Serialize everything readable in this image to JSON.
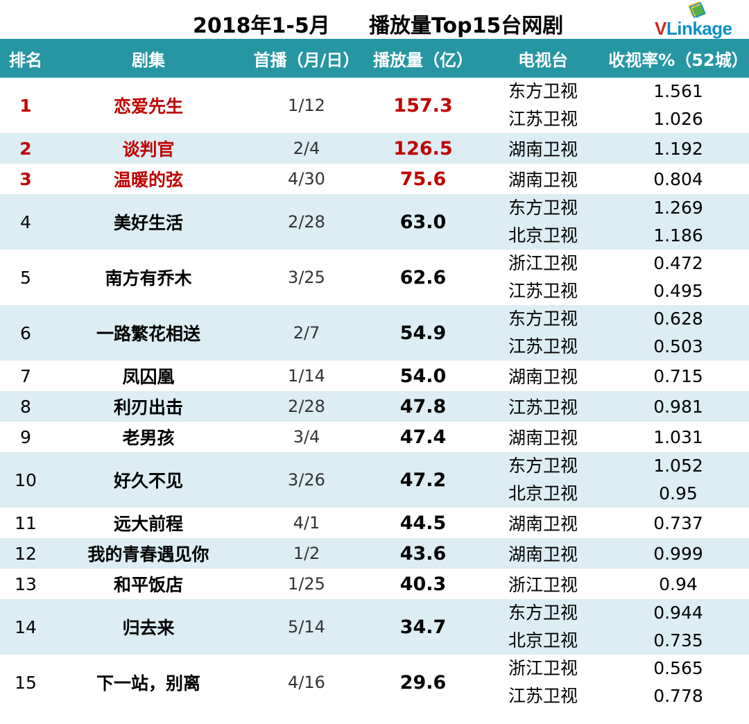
{
  "title": {
    "left": "2018年1-5月",
    "right": "播放量Top15台网剧"
  },
  "logo": {
    "v": "V",
    "rest": "Linkage"
  },
  "headers": [
    "排名",
    "剧集",
    "首播（月/日）",
    "播放量（亿）",
    "电视台",
    "收视率%（52城）"
  ],
  "rows": [
    {
      "rank": "1",
      "name": "恋爱先生",
      "date": "1/12",
      "plays": "157.3",
      "tv": [
        "东方卫视",
        "江苏卫视"
      ],
      "rating": [
        "1.561",
        "1.026"
      ]
    },
    {
      "rank": "2",
      "name": "谈判官",
      "date": "2/4",
      "plays": "126.5",
      "tv": [
        "湖南卫视"
      ],
      "rating": [
        "1.192"
      ]
    },
    {
      "rank": "3",
      "name": "温暖的弦",
      "date": "4/30",
      "plays": "75.6",
      "tv": [
        "湖南卫视"
      ],
      "rating": [
        "0.804"
      ]
    },
    {
      "rank": "4",
      "name": "美好生活",
      "date": "2/28",
      "plays": "63.0",
      "tv": [
        "东方卫视",
        "北京卫视"
      ],
      "rating": [
        "1.269",
        "1.186"
      ]
    },
    {
      "rank": "5",
      "name": "南方有乔木",
      "date": "3/25",
      "plays": "62.6",
      "tv": [
        "浙江卫视",
        "江苏卫视"
      ],
      "rating": [
        "0.472",
        "0.495"
      ]
    },
    {
      "rank": "6",
      "name": "一路繁花相送",
      "date": "2/7",
      "plays": "54.9",
      "tv": [
        "东方卫视",
        "江苏卫视"
      ],
      "rating": [
        "0.628",
        "0.503"
      ]
    },
    {
      "rank": "7",
      "name": "凤囚凰",
      "date": "1/14",
      "plays": "54.0",
      "tv": [
        "湖南卫视"
      ],
      "rating": [
        "0.715"
      ]
    },
    {
      "rank": "8",
      "name": "利刃出击",
      "date": "2/28",
      "plays": "47.8",
      "tv": [
        "江苏卫视"
      ],
      "rating": [
        "0.981"
      ]
    },
    {
      "rank": "9",
      "name": "老男孩",
      "date": "3/4",
      "plays": "47.4",
      "tv": [
        "湖南卫视"
      ],
      "rating": [
        "1.031"
      ]
    },
    {
      "rank": "10",
      "name": "好久不见",
      "date": "3/26",
      "plays": "47.2",
      "tv": [
        "东方卫视",
        "北京卫视"
      ],
      "rating": [
        "1.052",
        "0.95"
      ]
    },
    {
      "rank": "11",
      "name": "远大前程",
      "date": "4/1",
      "plays": "44.5",
      "tv": [
        "湖南卫视"
      ],
      "rating": [
        "0.737"
      ]
    },
    {
      "rank": "12",
      "name": "我的青春遇见你",
      "date": "1/2",
      "plays": "43.6",
      "tv": [
        "湖南卫视"
      ],
      "rating": [
        "0.999"
      ]
    },
    {
      "rank": "13",
      "name": "和平饭店",
      "date": "1/25",
      "plays": "40.3",
      "tv": [
        "浙江卫视"
      ],
      "rating": [
        "0.94"
      ]
    },
    {
      "rank": "14",
      "name": "归去来",
      "date": "5/14",
      "plays": "34.7",
      "tv": [
        "东方卫视",
        "北京卫视"
      ],
      "rating": [
        "0.944",
        "0.735"
      ]
    },
    {
      "rank": "15",
      "name": "下一站，别离",
      "date": "4/16",
      "plays": "29.6",
      "tv": [
        "浙江卫视",
        "江苏卫视"
      ],
      "rating": [
        "0.565",
        "0.778"
      ]
    }
  ],
  "colors": {
    "header_bg": "#2696a3",
    "alt_row_bg": "#dcedf3",
    "highlight_red": "#c00000",
    "logo_red": "#d22121",
    "logo_blue": "#0e8fc4"
  }
}
